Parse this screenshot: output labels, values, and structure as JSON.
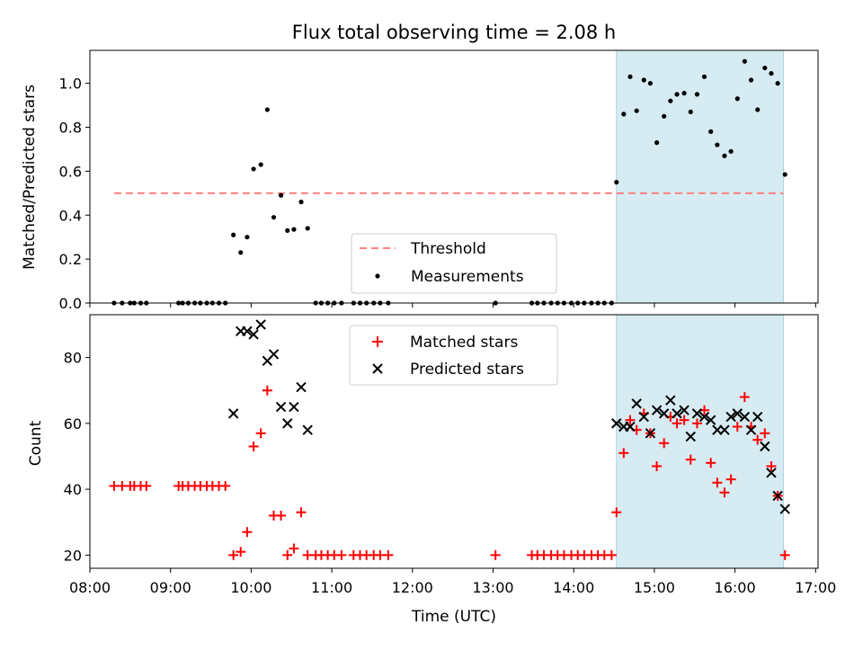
{
  "chart_data": [
    {
      "type": "scatter",
      "title": "Flux total observing time = 2.08 h",
      "ylabel": "Matched/Predicted stars",
      "xlabel": "",
      "xlim": [
        8.0,
        17.03
      ],
      "ylim": [
        0,
        1.15
      ],
      "yticks": [
        0.0,
        0.2,
        0.4,
        0.6,
        0.8,
        1.0
      ],
      "ytick_labels": [
        "0.0",
        "0.2",
        "0.4",
        "0.6",
        "0.8",
        "1.0"
      ],
      "grid": false,
      "legend_position": "lower-center",
      "shaded_region": [
        14.53,
        16.6
      ],
      "threshold": {
        "name": "Threshold",
        "value": 0.5,
        "x_range": [
          8.3,
          16.6
        ],
        "color": "#ff8080"
      },
      "series": [
        {
          "name": "Measurements",
          "color": "#000000",
          "marker": "dot",
          "points": [
            [
              8.3,
              0.0
            ],
            [
              8.4,
              0.0
            ],
            [
              8.5,
              0.0
            ],
            [
              8.55,
              0.0
            ],
            [
              8.63,
              0.0
            ],
            [
              8.7,
              0.0
            ],
            [
              9.1,
              0.0
            ],
            [
              9.15,
              0.0
            ],
            [
              9.22,
              0.0
            ],
            [
              9.3,
              0.0
            ],
            [
              9.37,
              0.0
            ],
            [
              9.45,
              0.0
            ],
            [
              9.52,
              0.0
            ],
            [
              9.6,
              0.0
            ],
            [
              9.68,
              0.0
            ],
            [
              9.78,
              0.31
            ],
            [
              9.87,
              0.23
            ],
            [
              9.95,
              0.3
            ],
            [
              10.03,
              0.61
            ],
            [
              10.12,
              0.63
            ],
            [
              10.2,
              0.88
            ],
            [
              10.28,
              0.39
            ],
            [
              10.37,
              0.49
            ],
            [
              10.45,
              0.33
            ],
            [
              10.53,
              0.335
            ],
            [
              10.62,
              0.46
            ],
            [
              10.7,
              0.34
            ],
            [
              10.8,
              0.0
            ],
            [
              10.87,
              0.0
            ],
            [
              10.95,
              0.0
            ],
            [
              11.03,
              0.0
            ],
            [
              11.12,
              0.0
            ],
            [
              11.27,
              0.0
            ],
            [
              11.35,
              0.0
            ],
            [
              11.43,
              0.0
            ],
            [
              11.52,
              0.0
            ],
            [
              11.6,
              0.0
            ],
            [
              11.7,
              0.0
            ],
            [
              13.03,
              0.0
            ],
            [
              13.48,
              0.0
            ],
            [
              13.55,
              0.0
            ],
            [
              13.63,
              0.0
            ],
            [
              13.72,
              0.0
            ],
            [
              13.8,
              0.0
            ],
            [
              13.88,
              0.0
            ],
            [
              13.97,
              0.0
            ],
            [
              14.05,
              0.0
            ],
            [
              14.13,
              0.0
            ],
            [
              14.22,
              0.0
            ],
            [
              14.3,
              0.0
            ],
            [
              14.38,
              0.0
            ],
            [
              14.47,
              0.0
            ],
            [
              14.53,
              0.55
            ],
            [
              14.62,
              0.86
            ],
            [
              14.7,
              1.03
            ],
            [
              14.78,
              0.875
            ],
            [
              14.87,
              1.015
            ],
            [
              14.95,
              1.0
            ],
            [
              15.03,
              0.73
            ],
            [
              15.12,
              0.85
            ],
            [
              15.2,
              0.92
            ],
            [
              15.28,
              0.95
            ],
            [
              15.37,
              0.955
            ],
            [
              15.45,
              0.87
            ],
            [
              15.53,
              0.95
            ],
            [
              15.62,
              1.03
            ],
            [
              15.7,
              0.78
            ],
            [
              15.78,
              0.72
            ],
            [
              15.87,
              0.67
            ],
            [
              15.95,
              0.69
            ],
            [
              16.03,
              0.93
            ],
            [
              16.12,
              1.1
            ],
            [
              16.2,
              1.015
            ],
            [
              16.28,
              0.88
            ],
            [
              16.37,
              1.07
            ],
            [
              16.45,
              1.045
            ],
            [
              16.53,
              1.0
            ],
            [
              16.62,
              0.585
            ]
          ]
        }
      ]
    },
    {
      "type": "scatter",
      "title": "",
      "xlabel": "Time (UTC)",
      "ylabel": "Count",
      "xlim": [
        8.0,
        17.03
      ],
      "ylim": [
        16,
        93
      ],
      "xticks": [
        8,
        9,
        10,
        11,
        12,
        13,
        14,
        15,
        16,
        17
      ],
      "xtick_labels": [
        "08:00",
        "09:00",
        "10:00",
        "11:00",
        "12:00",
        "13:00",
        "14:00",
        "15:00",
        "16:00",
        "17:00"
      ],
      "yticks": [
        20,
        40,
        60,
        80
      ],
      "ytick_labels": [
        "20",
        "40",
        "60",
        "80"
      ],
      "grid": false,
      "legend_position": "top-center",
      "shaded_region": [
        14.53,
        16.6
      ],
      "series": [
        {
          "name": "Matched stars",
          "color": "#ff0000",
          "marker": "plus",
          "points": [
            [
              8.3,
              41
            ],
            [
              8.4,
              41
            ],
            [
              8.5,
              41
            ],
            [
              8.55,
              41
            ],
            [
              8.63,
              41
            ],
            [
              8.7,
              41
            ],
            [
              9.1,
              41
            ],
            [
              9.15,
              41
            ],
            [
              9.22,
              41
            ],
            [
              9.3,
              41
            ],
            [
              9.37,
              41
            ],
            [
              9.45,
              41
            ],
            [
              9.52,
              41
            ],
            [
              9.6,
              41
            ],
            [
              9.68,
              41
            ],
            [
              9.78,
              20
            ],
            [
              9.87,
              21
            ],
            [
              9.95,
              27
            ],
            [
              10.03,
              53
            ],
            [
              10.12,
              57
            ],
            [
              10.2,
              70
            ],
            [
              10.28,
              32
            ],
            [
              10.37,
              32
            ],
            [
              10.45,
              20
            ],
            [
              10.53,
              22
            ],
            [
              10.62,
              33
            ],
            [
              10.7,
              20
            ],
            [
              10.8,
              20
            ],
            [
              10.87,
              20
            ],
            [
              10.95,
              20
            ],
            [
              11.03,
              20
            ],
            [
              11.12,
              20
            ],
            [
              11.27,
              20
            ],
            [
              11.35,
              20
            ],
            [
              11.43,
              20
            ],
            [
              11.52,
              20
            ],
            [
              11.6,
              20
            ],
            [
              11.7,
              20
            ],
            [
              13.03,
              20
            ],
            [
              13.48,
              20
            ],
            [
              13.55,
              20
            ],
            [
              13.63,
              20
            ],
            [
              13.72,
              20
            ],
            [
              13.8,
              20
            ],
            [
              13.88,
              20
            ],
            [
              13.97,
              20
            ],
            [
              14.05,
              20
            ],
            [
              14.13,
              20
            ],
            [
              14.22,
              20
            ],
            [
              14.3,
              20
            ],
            [
              14.38,
              20
            ],
            [
              14.47,
              20
            ],
            [
              14.53,
              33
            ],
            [
              14.62,
              51
            ],
            [
              14.7,
              61
            ],
            [
              14.78,
              58
            ],
            [
              14.87,
              63
            ],
            [
              14.95,
              57
            ],
            [
              15.03,
              47
            ],
            [
              15.12,
              54
            ],
            [
              15.2,
              62
            ],
            [
              15.28,
              60
            ],
            [
              15.37,
              61
            ],
            [
              15.45,
              49
            ],
            [
              15.53,
              60
            ],
            [
              15.62,
              64
            ],
            [
              15.7,
              48
            ],
            [
              15.78,
              42
            ],
            [
              15.87,
              39
            ],
            [
              15.95,
              43
            ],
            [
              16.03,
              59
            ],
            [
              16.12,
              68
            ],
            [
              16.2,
              59
            ],
            [
              16.28,
              55
            ],
            [
              16.37,
              57
            ],
            [
              16.45,
              47
            ],
            [
              16.53,
              38
            ],
            [
              16.62,
              20
            ]
          ]
        },
        {
          "name": "Predicted stars",
          "color": "#000000",
          "marker": "x",
          "points": [
            [
              9.78,
              63
            ],
            [
              9.87,
              88
            ],
            [
              9.95,
              88
            ],
            [
              10.03,
              87
            ],
            [
              10.12,
              90
            ],
            [
              10.2,
              79
            ],
            [
              10.28,
              81
            ],
            [
              10.37,
              65
            ],
            [
              10.45,
              60
            ],
            [
              10.53,
              65
            ],
            [
              10.62,
              71
            ],
            [
              10.7,
              58
            ],
            [
              14.53,
              60
            ],
            [
              14.62,
              59
            ],
            [
              14.7,
              59
            ],
            [
              14.78,
              66
            ],
            [
              14.87,
              62
            ],
            [
              14.95,
              57
            ],
            [
              15.03,
              64
            ],
            [
              15.12,
              63
            ],
            [
              15.2,
              67
            ],
            [
              15.28,
              63
            ],
            [
              15.37,
              64
            ],
            [
              15.45,
              56
            ],
            [
              15.53,
              63
            ],
            [
              15.62,
              62
            ],
            [
              15.7,
              61
            ],
            [
              15.78,
              58
            ],
            [
              15.87,
              58
            ],
            [
              15.95,
              62
            ],
            [
              16.03,
              63
            ],
            [
              16.12,
              62
            ],
            [
              16.2,
              58
            ],
            [
              16.28,
              62
            ],
            [
              16.37,
              53
            ],
            [
              16.45,
              45
            ],
            [
              16.53,
              38
            ],
            [
              16.62,
              34
            ]
          ]
        }
      ]
    }
  ]
}
